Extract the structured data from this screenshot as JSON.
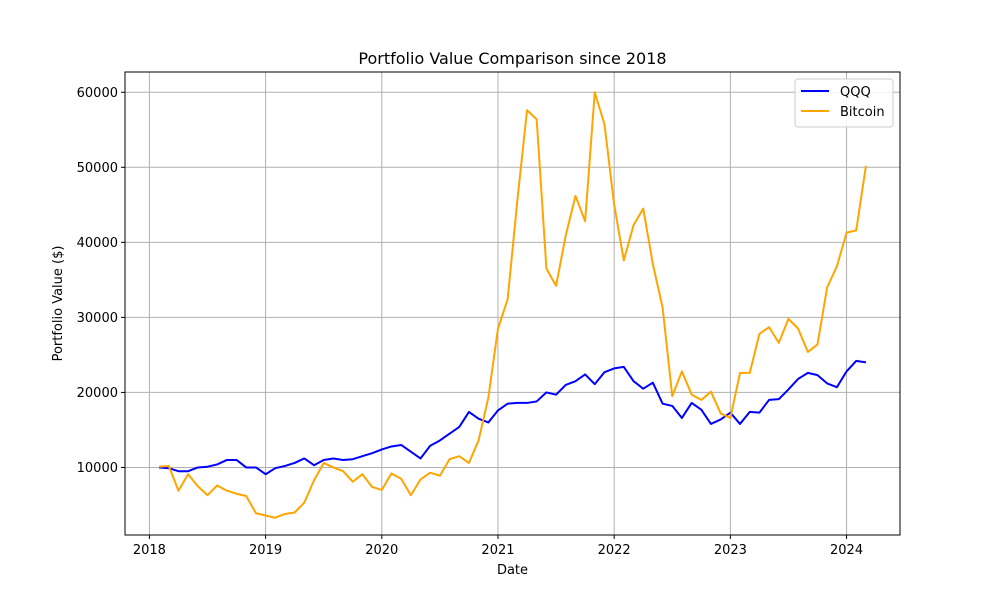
{
  "chart_data": {
    "type": "line",
    "title": "Portfolio Value Comparison since 2018",
    "xlabel": "Date",
    "ylabel": "Portfolio Value ($)",
    "xlim": [
      2017.79,
      2024.46
    ],
    "ylim": [
      1000,
      62700
    ],
    "xticks": [
      2018,
      2019,
      2020,
      2021,
      2022,
      2023,
      2024
    ],
    "xtick_labels": [
      "2018",
      "2019",
      "2020",
      "2021",
      "2022",
      "2023",
      "2024"
    ],
    "yticks": [
      10000,
      20000,
      30000,
      40000,
      50000,
      60000
    ],
    "ytick_labels": [
      "10000",
      "20000",
      "30000",
      "40000",
      "50000",
      "60000"
    ],
    "grid": true,
    "legend_position": "top-right",
    "x": [
      2018.083,
      2018.167,
      2018.25,
      2018.333,
      2018.417,
      2018.5,
      2018.583,
      2018.667,
      2018.75,
      2018.833,
      2018.917,
      2019.0,
      2019.083,
      2019.167,
      2019.25,
      2019.333,
      2019.417,
      2019.5,
      2019.583,
      2019.667,
      2019.75,
      2019.833,
      2019.917,
      2020.0,
      2020.083,
      2020.167,
      2020.25,
      2020.333,
      2020.417,
      2020.5,
      2020.583,
      2020.667,
      2020.75,
      2020.833,
      2020.917,
      2021.0,
      2021.083,
      2021.167,
      2021.25,
      2021.333,
      2021.417,
      2021.5,
      2021.583,
      2021.667,
      2021.75,
      2021.833,
      2021.917,
      2022.0,
      2022.083,
      2022.167,
      2022.25,
      2022.333,
      2022.417,
      2022.5,
      2022.583,
      2022.667,
      2022.75,
      2022.833,
      2022.917,
      2023.0,
      2023.083,
      2023.167,
      2023.25,
      2023.333,
      2023.417,
      2023.5,
      2023.583,
      2023.667,
      2023.75,
      2023.833,
      2023.917,
      2024.0,
      2024.083,
      2024.167
    ],
    "series": [
      {
        "name": "QQQ",
        "color": "#0000ff",
        "values": [
          10000,
          9900,
          9500,
          9500,
          10000,
          10100,
          10400,
          11000,
          11000,
          10000,
          10000,
          9100,
          9900,
          10200,
          10600,
          11200,
          10300,
          11000,
          11200,
          11000,
          11100,
          11500,
          11900,
          12400,
          12800,
          13000,
          12100,
          11200,
          12900,
          13600,
          14500,
          15400,
          17400,
          16500,
          16000,
          17600,
          18500,
          18600,
          18600,
          18800,
          20000,
          19700,
          21000,
          21500,
          22400,
          21100,
          22700,
          23200,
          23400,
          21500,
          20500,
          21300,
          18500,
          18200,
          16600,
          18600,
          17700,
          15800,
          16400,
          17300,
          15800,
          17400,
          17300,
          19000,
          19100,
          20400,
          21800,
          22600,
          22300,
          21200,
          20700,
          22800,
          24200,
          24000
        ]
      },
      {
        "name": "Bitcoin",
        "color": "#ffa500",
        "values": [
          10100,
          10200,
          6900,
          9100,
          7500,
          6300,
          7600,
          6900,
          6500,
          6200,
          3900,
          3600,
          3300,
          3800,
          4000,
          5300,
          8300,
          10600,
          10000,
          9500,
          8100,
          9100,
          7400,
          7000,
          9200,
          8500,
          6300,
          8400,
          9300,
          8900,
          11100,
          11500,
          10600,
          13600,
          19300,
          28500,
          32400,
          45600,
          57600,
          56400,
          36500,
          34200,
          40900,
          46200,
          42800,
          60000,
          55700,
          45000,
          37600,
          42300,
          44500,
          37100,
          31300,
          19500,
          22800,
          19700,
          19000,
          20100,
          17200,
          16600,
          22600,
          22600,
          27800,
          28700,
          26600,
          29800,
          28500,
          25400,
          26400,
          34000,
          36800,
          41300,
          41600,
          50200
        ]
      }
    ]
  }
}
